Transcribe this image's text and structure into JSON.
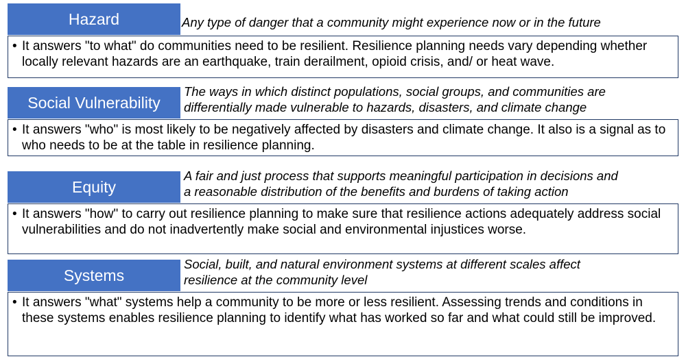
{
  "concepts": [
    {
      "term": "Hazard",
      "definition_lines": [
        "Any type of danger that a community might experience now or in the future"
      ],
      "bullet": "•",
      "description": "It answers \"to what\" do communities need to be resilient. Resilience planning needs vary depending whether locally relevant hazards are an earthquake, train derailment, opioid crisis, and/ or heat wave."
    },
    {
      "term": "Social Vulnerability",
      "definition_lines": [
        "The ways in which distinct populations, social groups, and communities are",
        "differentially made vulnerable to hazards, disasters, and climate change"
      ],
      "bullet": "•",
      "description": "It answers \"who\" is most likely to be negatively affected by disasters and climate change. It also is a signal as to who needs to be at the table in resilience planning."
    },
    {
      "term": "Equity",
      "definition_lines": [
        "A fair and just process that supports meaningful participation in decisions and",
        "a reasonable distribution of the benefits and burdens of taking action"
      ],
      "bullet": "•",
      "description": "It answers \"how\" to carry out resilience planning to make sure that resilience actions adequately address social vulnerabilities and do not inadvertently make social and environmental injustices worse."
    },
    {
      "term": "Systems",
      "definition_lines": [
        "Social, built, and natural environment systems at different scales affect",
        "resilience at the community level"
      ],
      "bullet": "•",
      "description": "It answers \"what\" systems help a community to be more or less resilient. Assessing trends and conditions in these systems enables resilience planning to identify what has worked so far and what could still be improved."
    }
  ]
}
